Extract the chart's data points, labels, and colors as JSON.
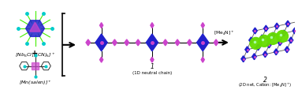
{
  "background_color": "#ffffff",
  "fig_width": 3.78,
  "fig_height": 1.15,
  "dpi": 100,
  "panel1_label1": "[Nb$_6$Cl$_{12}$(CN)$_6$]$^+$",
  "panel1_plus": "+",
  "panel1_label2": "[Mn(salen)]$^+$",
  "arrow1_label": "",
  "compound1_num": "1",
  "compound1_name": "(1D neutral chain)",
  "arrow2_label": "[Me$_4$N]$^+$",
  "compound2_num": "2",
  "compound2_name": "(2D net, Cation: [Me$_4$N]$^+$)",
  "blue_dark": "#2020cc",
  "blue_mid": "#4444ee",
  "purple": "#cc44cc",
  "cyan": "#00cccc",
  "green_bright": "#44ee00",
  "green_sphere": "#66dd00",
  "gray_line": "#555555",
  "font_size_label": 4.5,
  "font_size_num": 5.5,
  "font_size_compound": 4.0,
  "font_size_arrow": 4.2
}
